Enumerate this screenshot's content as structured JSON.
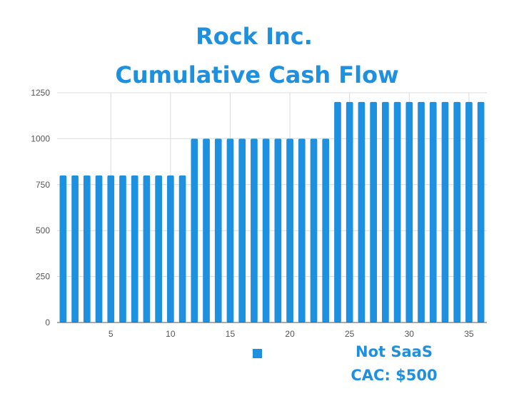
{
  "chart_data": {
    "type": "bar",
    "title": "Rock Inc.",
    "subtitle": "Cumulative Cash Flow",
    "xlabel": "",
    "ylabel": "",
    "x": [
      1,
      2,
      3,
      4,
      5,
      6,
      7,
      8,
      9,
      10,
      11,
      12,
      13,
      14,
      15,
      16,
      17,
      18,
      19,
      20,
      21,
      22,
      23,
      24,
      25,
      26,
      27,
      28,
      29,
      30,
      31,
      32,
      33,
      34,
      35,
      36
    ],
    "xlim": [
      0.5,
      36.5
    ],
    "xticks": [
      5,
      10,
      15,
      20,
      25,
      30,
      35
    ],
    "ylim": [
      0,
      1250
    ],
    "yticks": [
      0,
      250,
      500,
      750,
      1000,
      1250
    ],
    "grid": true,
    "legend_position": "bottom-right",
    "series": [
      {
        "name": "Not SaaS\nCAC: $500",
        "color": "#1e90e0",
        "values": [
          800,
          800,
          800,
          800,
          800,
          800,
          800,
          800,
          800,
          800,
          800,
          1000,
          1000,
          1000,
          1000,
          1000,
          1000,
          1000,
          1000,
          1000,
          1000,
          1000,
          1000,
          1200,
          1200,
          1200,
          1200,
          1200,
          1200,
          1200,
          1200,
          1200,
          1200,
          1200,
          1200,
          1200
        ]
      }
    ]
  }
}
